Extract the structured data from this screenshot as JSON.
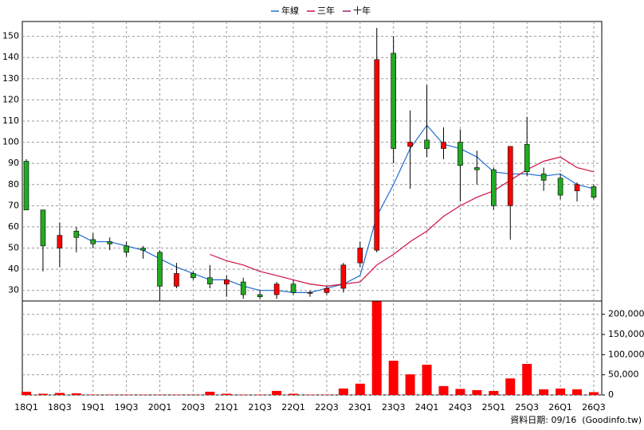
{
  "chart_data": [
    {
      "type": "candlestick",
      "categories": [
        "18Q1",
        null,
        "18Q3",
        null,
        "19Q1",
        null,
        "19Q3",
        null,
        "20Q1",
        null,
        "20Q3",
        null,
        "21Q1",
        null,
        "21Q3",
        null,
        "22Q1",
        null,
        "22Q3",
        null,
        "23Q1",
        null,
        "23Q3",
        null,
        "24Q1",
        null,
        "24Q3",
        null,
        "25Q1",
        null,
        "25Q3",
        null,
        "26Q1",
        null,
        "26Q3"
      ],
      "open": [
        91,
        68,
        50,
        58,
        54,
        53,
        51,
        50,
        48,
        32,
        38,
        36,
        33,
        34,
        28,
        28,
        33,
        29,
        29,
        31,
        43,
        49,
        142,
        98,
        101,
        97,
        100,
        88,
        87,
        70,
        99,
        85,
        83,
        77,
        79
      ],
      "high": [
        92,
        68,
        62,
        60,
        57,
        55,
        53,
        51,
        49,
        43,
        39,
        42,
        37,
        36,
        30,
        34,
        35,
        30,
        32,
        43,
        53,
        154,
        150,
        115,
        127,
        107,
        106,
        96,
        88,
        98,
        112,
        88,
        85,
        81,
        80
      ],
      "low": [
        68,
        39,
        41,
        48,
        50,
        49,
        46,
        45,
        25,
        31,
        35,
        31,
        27,
        26,
        26,
        26,
        28,
        27,
        28,
        29,
        41,
        48,
        90,
        78,
        93,
        92,
        72,
        80,
        68,
        54,
        84,
        77,
        73,
        72,
        73
      ],
      "close": [
        68,
        51,
        56,
        55,
        52,
        52,
        48,
        49,
        32,
        38,
        36,
        33,
        35,
        28,
        27,
        33,
        29,
        29,
        31,
        42,
        50,
        139,
        97,
        100,
        97,
        100,
        89,
        87,
        70,
        98,
        86,
        82,
        75,
        80,
        74
      ],
      "up_color": "#ff0000",
      "down_color": "#22aa22",
      "series": [
        {
          "name": "年線",
          "color": "#1f6fd0",
          "values": [
            null,
            null,
            null,
            57,
            53,
            53,
            51,
            49,
            45,
            41,
            38,
            35,
            35,
            32,
            30,
            30,
            29,
            29,
            31,
            33,
            37,
            65,
            80,
            97,
            108,
            99,
            97,
            93,
            86,
            85,
            85,
            84,
            85,
            80,
            78
          ]
        },
        {
          "name": "三年",
          "color": "#d01040",
          "values": [
            null,
            null,
            null,
            null,
            null,
            null,
            null,
            null,
            null,
            null,
            null,
            47,
            44,
            42,
            39,
            37,
            35,
            33,
            32,
            33,
            34,
            42,
            47,
            53,
            58,
            65,
            70,
            74,
            77,
            82,
            87,
            91,
            93,
            88,
            86
          ]
        },
        {
          "name": "十年",
          "color": "#a0206f",
          "values": [
            null,
            null,
            null,
            null,
            null,
            null,
            null,
            null,
            null,
            null,
            null,
            null,
            null,
            null,
            null,
            null,
            null,
            null,
            null,
            null,
            null,
            null,
            null,
            null,
            null,
            null,
            null,
            null,
            null,
            null,
            null,
            null,
            null,
            null,
            null
          ]
        }
      ],
      "ylim": [
        25,
        157
      ],
      "yticks": [
        30,
        40,
        50,
        60,
        70,
        80,
        90,
        100,
        110,
        120,
        130,
        140,
        150
      ],
      "grid": true
    },
    {
      "type": "bar",
      "values": [
        8000,
        3000,
        5000,
        4000,
        1000,
        1000,
        1000,
        1000,
        1000,
        1000,
        1000,
        8000,
        3000,
        1000,
        1000,
        10000,
        3000,
        1000,
        1000,
        16000,
        28000,
        232000,
        85000,
        51000,
        75000,
        22000,
        15000,
        12000,
        10000,
        41000,
        77000,
        14000,
        16000,
        14000,
        7000
      ],
      "color": "#ff0000",
      "ylim": [
        0,
        233000
      ],
      "yticks": [
        0,
        {
          "value": 50000,
          "label": "50,000"
        },
        {
          "value": 100000,
          "label": "100,000"
        },
        {
          "value": 150000,
          "label": "150,000"
        },
        {
          "value": 200000,
          "label": "200,000"
        }
      ],
      "grid": true
    }
  ],
  "footer": "資料日期: 09/16  (Goodinfo.tw)"
}
